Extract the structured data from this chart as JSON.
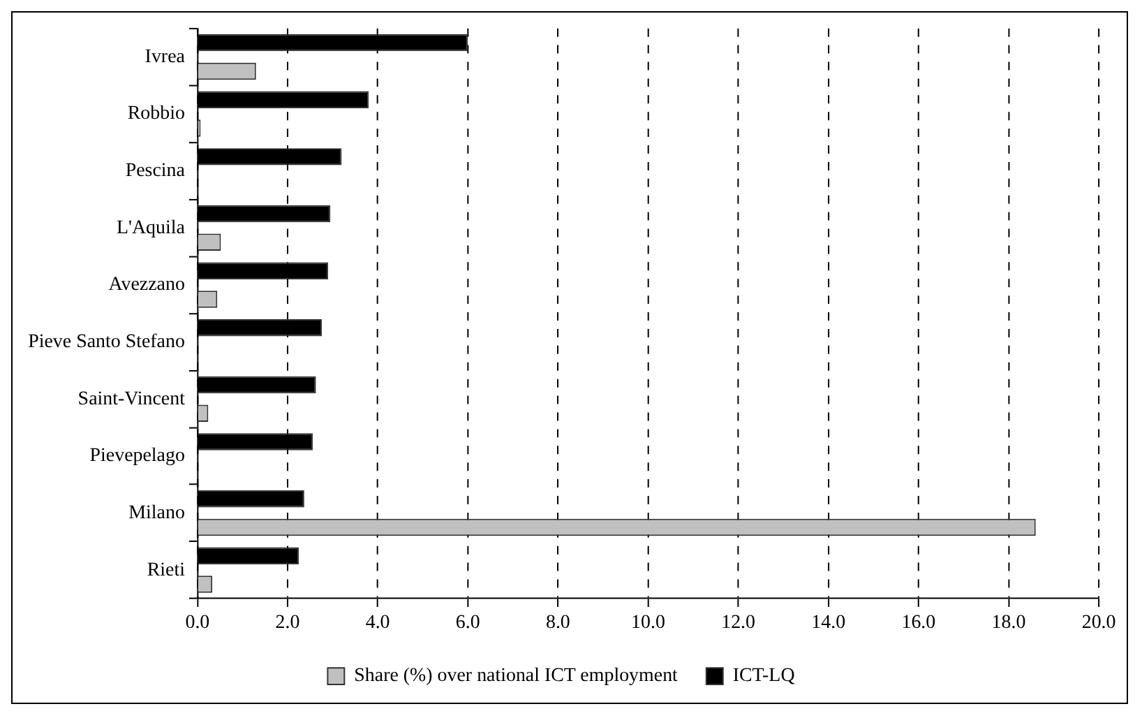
{
  "chart_data": {
    "type": "bar",
    "orientation": "horizontal",
    "categories": [
      "Ivrea",
      "Robbio",
      "Pescina",
      "L'Aquila",
      "Avezzano",
      "Pieve Santo Stefano",
      "Saint-Vincent",
      "Pievepelago",
      "Milano",
      "Rieti"
    ],
    "series": [
      {
        "name": "Share (%) over national ICT employment",
        "color": "#c0c0c0",
        "values": [
          1.3,
          0.07,
          null,
          0.52,
          0.44,
          null,
          0.24,
          null,
          18.6,
          0.33
        ]
      },
      {
        "name": "ICT-LQ",
        "color": "#000000",
        "values": [
          6.0,
          3.8,
          3.2,
          2.95,
          2.9,
          2.76,
          2.63,
          2.56,
          2.37,
          2.25
        ]
      }
    ],
    "xlim": [
      0,
      20
    ],
    "xticks": [
      {
        "value": 0,
        "label": "0.0"
      },
      {
        "value": 2,
        "label": "2.0"
      },
      {
        "value": 4,
        "label": "4.0"
      },
      {
        "value": 6,
        "label": "6.0"
      },
      {
        "value": 8,
        "label": "8.0"
      },
      {
        "value": 10,
        "label": "10.0"
      },
      {
        "value": 12,
        "label": "12.0"
      },
      {
        "value": 14,
        "label": "14.0"
      },
      {
        "value": 16,
        "label": "16.0"
      },
      {
        "value": 18,
        "label": "18.0"
      },
      {
        "value": 20,
        "label": "20.0"
      }
    ],
    "grid": "x",
    "legend": "bottom"
  }
}
